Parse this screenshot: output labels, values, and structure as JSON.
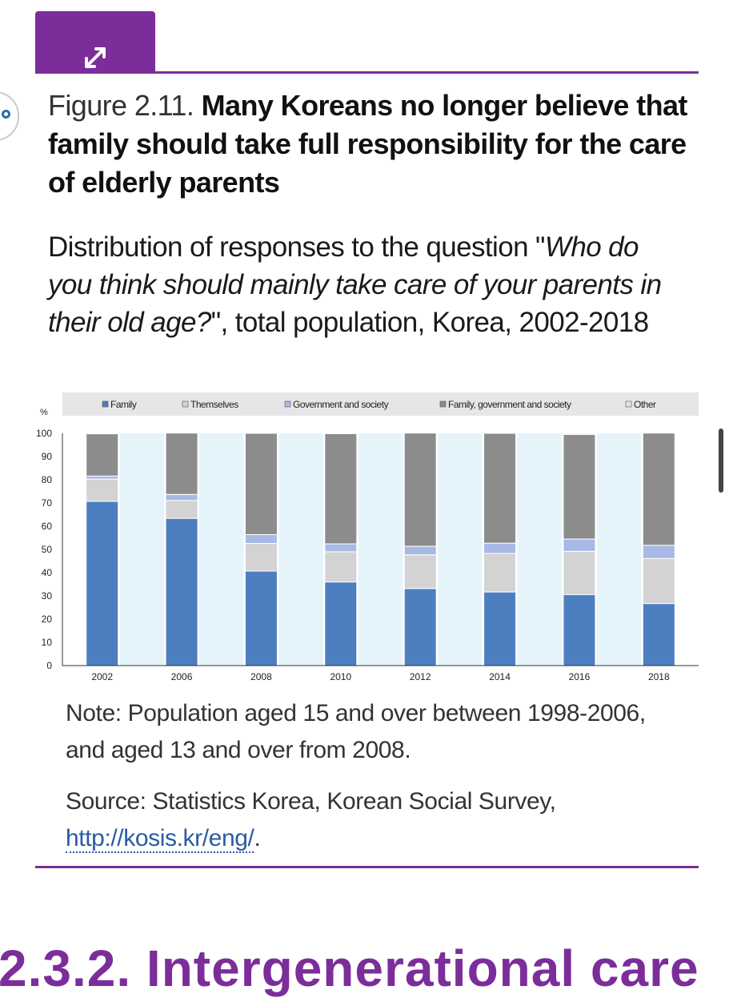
{
  "header": {
    "expand_icon": "expand-arrows-icon"
  },
  "figure": {
    "number": "Figure 2.11.",
    "title": "Many Koreans no longer believe that family should take full responsibility for the care of elderly parents",
    "subtitle_pre": "Distribution of responses to the question \"",
    "subtitle_question": "Who do you think should mainly take care of your parents in their old age?",
    "subtitle_post": "\", total population, Korea, 2002-2018"
  },
  "chart_data": {
    "type": "bar",
    "stacked": true,
    "ylabel": "%",
    "ylim": [
      0,
      100
    ],
    "yticks": [
      0,
      10,
      20,
      30,
      40,
      50,
      60,
      70,
      80,
      90,
      100
    ],
    "categories": [
      "2002",
      "2006",
      "2008",
      "2010",
      "2012",
      "2014",
      "2016",
      "2018"
    ],
    "legend_position": "top",
    "series": [
      {
        "name": "Family",
        "color": "#4d7fc0",
        "values": [
          70.7,
          63.4,
          40.7,
          36.0,
          33.2,
          31.7,
          30.6,
          26.7
        ]
      },
      {
        "name": "Themselves",
        "color": "#d3d3d3",
        "values": [
          9.6,
          7.7,
          11.9,
          13.0,
          14.5,
          16.6,
          18.6,
          19.4
        ]
      },
      {
        "name": "Government and society",
        "color": "#a9b9e6",
        "values": [
          1.3,
          2.6,
          3.8,
          3.4,
          3.7,
          4.4,
          5.3,
          5.7
        ]
      },
      {
        "name": "Family, government and society",
        "color": "#8c8c8c",
        "values": [
          18.2,
          26.4,
          43.6,
          47.5,
          48.7,
          47.3,
          45.0,
          48.3
        ]
      },
      {
        "name": "Other",
        "color": "#e2e2e2",
        "values": [
          0.2,
          0.0,
          0.0,
          0.1,
          0.0,
          0.0,
          0.5,
          0.0
        ]
      }
    ]
  },
  "note": "Note: Population aged 15 and over between 1998-2006, and aged 13 and over from 2008.",
  "source_prefix": "Source: Statistics Korea, Korean Social Survey, ",
  "source_link": "http://kosis.kr/eng/",
  "source_suffix": ".",
  "next_section_heading": "2.3.2. Intergenerational care"
}
